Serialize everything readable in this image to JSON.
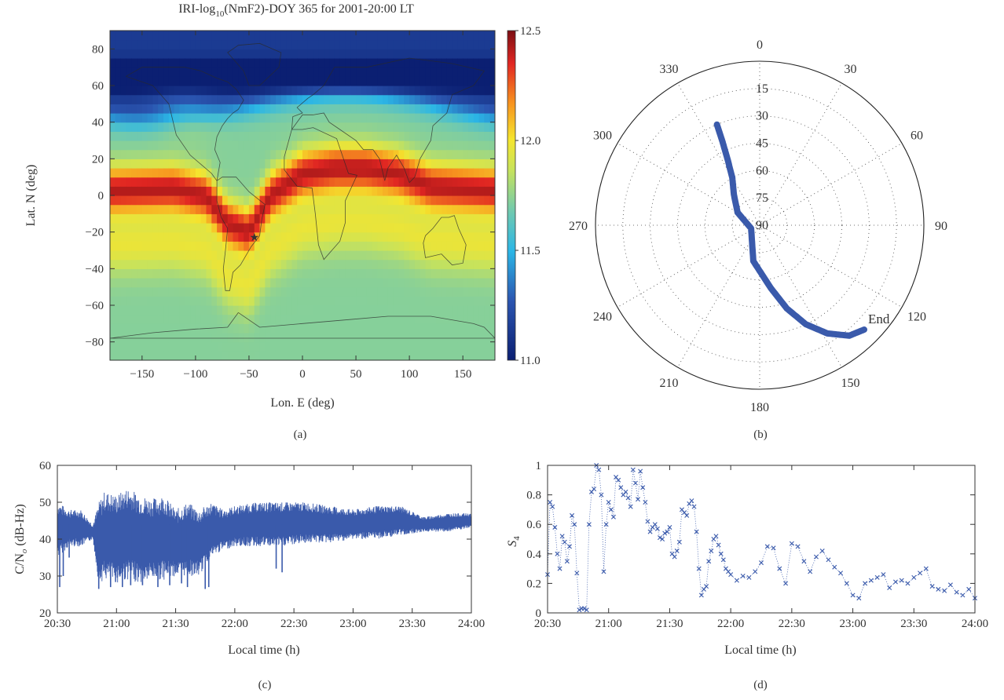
{
  "panel_a": {
    "title_main": "IRI-log",
    "title_sub": "10",
    "title_rest": "(NmF2)-DOY 365 for 2001-20:00 LT",
    "xlabel": "Lon. E (deg)",
    "ylabel": "Lat. N (deg)",
    "caption": "(a)",
    "station_marker": "★"
  },
  "panel_b": {
    "caption": "(b)",
    "end_label": "End"
  },
  "panel_c": {
    "caption": "(c)",
    "xlabel": "Local time (h)",
    "ylabel_main": "C/N",
    "ylabel_sub": "o",
    "ylabel_rest": " (dB-Hz)"
  },
  "panel_d": {
    "caption": "(d)",
    "xlabel": "Local time (h)",
    "ylabel_main": "S",
    "ylabel_sub": "4"
  },
  "colors": {
    "series": "#3a5aab",
    "axis": "#333333"
  },
  "chart_data": [
    {
      "type": "heatmap",
      "id": "a",
      "xlim": [
        -180,
        180
      ],
      "ylim": [
        -90,
        90
      ],
      "xticks": [
        -150,
        -100,
        -50,
        0,
        50,
        100,
        150
      ],
      "yticks": [
        -80,
        -60,
        -40,
        -20,
        0,
        20,
        40,
        60,
        80
      ],
      "colorbar": {
        "min": 11.0,
        "max": 12.5,
        "ticks": [
          "11.0",
          "11.5",
          "12.0",
          "12.5"
        ]
      },
      "station": {
        "lon": -45,
        "lat": -22.7
      },
      "crest_lat_at_lon": [
        [
          -180,
          3
        ],
        [
          -120,
          4
        ],
        [
          -90,
          0
        ],
        [
          -70,
          -15
        ],
        [
          -50,
          -20
        ],
        [
          -30,
          0
        ],
        [
          0,
          12
        ],
        [
          30,
          15
        ],
        [
          60,
          15
        ],
        [
          90,
          12
        ],
        [
          120,
          5
        ],
        [
          150,
          4
        ],
        [
          180,
          3
        ]
      ]
    },
    {
      "type": "scatter",
      "id": "b",
      "projection": "polar",
      "azimuth_ticks": [
        0,
        30,
        60,
        90,
        120,
        150,
        180,
        210,
        240,
        270,
        300,
        330
      ],
      "elevation_ticks": [
        15,
        30,
        45,
        60,
        75,
        90
      ],
      "track": [
        [
          337,
          30
        ],
        [
          336,
          40
        ],
        [
          334,
          50
        ],
        [
          330,
          60
        ],
        [
          320,
          68
        ],
        [
          300,
          76
        ],
        [
          250,
          85
        ],
        [
          190,
          70
        ],
        [
          170,
          55
        ],
        [
          162,
          42
        ],
        [
          155,
          30
        ],
        [
          148,
          20
        ],
        [
          141,
          12
        ],
        [
          135,
          9
        ]
      ]
    },
    {
      "type": "line",
      "id": "c",
      "xticks": [
        "20:30",
        "21:00",
        "21:30",
        "22:00",
        "22:30",
        "23:00",
        "23:30",
        "24:00"
      ],
      "xlim_hours": [
        20.5,
        24.0
      ],
      "ylim": [
        20,
        60
      ],
      "yticks": [
        20,
        30,
        40,
        50,
        60
      ],
      "envelope": {
        "x_hours": [
          20.5,
          20.6,
          20.7,
          20.8,
          20.85,
          20.9,
          21.0,
          21.1,
          21.2,
          21.3,
          21.4,
          21.5,
          21.6,
          21.7,
          21.8,
          21.9,
          22.0,
          22.2,
          22.4,
          22.6,
          22.8,
          23.0,
          23.2,
          23.4,
          23.6,
          23.8,
          24.0
        ],
        "upper": [
          50,
          48,
          48,
          44,
          50,
          53,
          52,
          54,
          52,
          51,
          52,
          48,
          50,
          48,
          50,
          48,
          49,
          50,
          50,
          50,
          49,
          48,
          49,
          49,
          46,
          47,
          47
        ],
        "lower": [
          35,
          38,
          38,
          40,
          28,
          29,
          28,
          29,
          28,
          29,
          29,
          30,
          30,
          30,
          35,
          37,
          38,
          38,
          38,
          39,
          39,
          40,
          40,
          41,
          42,
          42,
          43
        ]
      },
      "dropouts": [
        [
          20.52,
          27
        ],
        [
          20.55,
          30
        ],
        [
          20.6,
          35
        ],
        [
          20.85,
          26.5
        ],
        [
          20.95,
          27
        ],
        [
          21.05,
          27
        ],
        [
          21.12,
          27.5
        ],
        [
          21.22,
          27.5
        ],
        [
          21.35,
          27
        ],
        [
          21.45,
          27.5
        ],
        [
          21.55,
          28
        ],
        [
          21.6,
          27
        ],
        [
          21.75,
          26.5
        ],
        [
          21.78,
          27
        ],
        [
          22.35,
          32
        ],
        [
          22.4,
          31
        ]
      ]
    },
    {
      "type": "scatter",
      "id": "d",
      "xticks": [
        "20:30",
        "21:00",
        "21:30",
        "22:00",
        "22:30",
        "23:00",
        "23:30",
        "24:00"
      ],
      "xlim_hours": [
        20.5,
        24.0
      ],
      "ylim": [
        0,
        1
      ],
      "yticks": [
        "0",
        "0.2",
        "0.4",
        "0.6",
        "0.8",
        "1"
      ],
      "x_hours": [
        20.5,
        20.52,
        20.54,
        20.56,
        20.58,
        20.6,
        20.62,
        20.64,
        20.66,
        20.68,
        20.7,
        20.72,
        20.74,
        20.76,
        20.78,
        20.8,
        20.82,
        20.84,
        20.86,
        20.88,
        20.9,
        20.92,
        20.94,
        20.96,
        20.98,
        21.0,
        21.02,
        21.04,
        21.06,
        21.08,
        21.1,
        21.12,
        21.14,
        21.16,
        21.18,
        21.2,
        21.22,
        21.24,
        21.26,
        21.28,
        21.3,
        21.32,
        21.34,
        21.36,
        21.38,
        21.4,
        21.42,
        21.44,
        21.46,
        21.48,
        21.5,
        21.52,
        21.54,
        21.56,
        21.58,
        21.6,
        21.62,
        21.64,
        21.66,
        21.68,
        21.7,
        21.72,
        21.74,
        21.76,
        21.78,
        21.8,
        21.82,
        21.84,
        21.86,
        21.88,
        21.9,
        21.92,
        21.94,
        21.96,
        21.98,
        22.0,
        22.05,
        22.1,
        22.15,
        22.2,
        22.25,
        22.3,
        22.35,
        22.4,
        22.45,
        22.5,
        22.55,
        22.6,
        22.65,
        22.7,
        22.75,
        22.8,
        22.85,
        22.9,
        22.95,
        23.0,
        23.05,
        23.1,
        23.15,
        23.2,
        23.25,
        23.3,
        23.35,
        23.4,
        23.45,
        23.5,
        23.55,
        23.6,
        23.65,
        23.7,
        23.75,
        23.8,
        23.85,
        23.9,
        23.95,
        24.0
      ],
      "values": [
        0.26,
        0.75,
        0.72,
        0.58,
        0.4,
        0.3,
        0.52,
        0.48,
        0.35,
        0.45,
        0.66,
        0.6,
        0.27,
        0.02,
        0.03,
        0.03,
        0.02,
        0.6,
        0.82,
        0.84,
        1.0,
        0.97,
        0.8,
        0.28,
        0.6,
        0.75,
        0.7,
        0.65,
        0.92,
        0.9,
        0.85,
        0.8,
        0.82,
        0.78,
        0.72,
        0.97,
        0.88,
        0.77,
        0.96,
        0.85,
        0.75,
        0.62,
        0.55,
        0.58,
        0.6,
        0.57,
        0.51,
        0.5,
        0.54,
        0.55,
        0.58,
        0.4,
        0.38,
        0.42,
        0.48,
        0.7,
        0.68,
        0.66,
        0.74,
        0.76,
        0.72,
        0.55,
        0.3,
        0.12,
        0.16,
        0.18,
        0.35,
        0.42,
        0.5,
        0.52,
        0.46,
        0.4,
        0.36,
        0.3,
        0.28,
        0.26,
        0.22,
        0.25,
        0.24,
        0.28,
        0.34,
        0.45,
        0.44,
        0.3,
        0.2,
        0.47,
        0.45,
        0.35,
        0.28,
        0.38,
        0.42,
        0.36,
        0.31,
        0.27,
        0.2,
        0.12,
        0.1,
        0.2,
        0.22,
        0.24,
        0.26,
        0.17,
        0.21,
        0.22,
        0.2,
        0.24,
        0.27,
        0.3,
        0.18,
        0.16,
        0.15,
        0.19,
        0.14,
        0.12,
        0.16,
        0.1
      ]
    }
  ]
}
